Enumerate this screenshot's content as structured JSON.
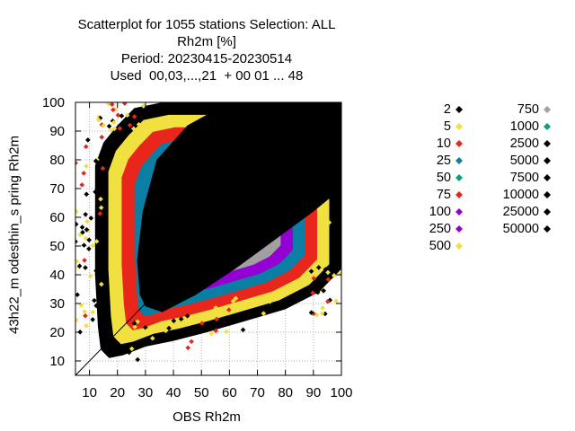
{
  "title_lines": [
    "Scatterplot for 1055 stations Selection: ALL",
    "Rh2m [%]",
    "Period: 20230415-20230514",
    "Used  00,03,...,21  + 00 01 ... 48"
  ],
  "chart_data": {
    "type": "scatter",
    "xlabel": "OBS Rh2m",
    "ylabel": "43h22_m odesthin_s pring Rh2m",
    "xlim": [
      5,
      100
    ],
    "ylim": [
      5,
      100
    ],
    "xticks": [
      "10",
      "20",
      "30",
      "40",
      "50",
      "60",
      "70",
      "80",
      "90",
      "100"
    ],
    "yticks": [
      "10",
      "20",
      "30",
      "40",
      "50",
      "60",
      "70",
      "80",
      "90",
      "100"
    ],
    "grid": true,
    "diagonal": true,
    "legend_position": "right",
    "legend": [
      {
        "label": "2",
        "color": "#000000"
      },
      {
        "label": "5",
        "color": "#f0e040"
      },
      {
        "label": "10",
        "color": "#e8261c"
      },
      {
        "label": "25",
        "color": "#0a7fa3"
      },
      {
        "label": "50",
        "color": "#08a07a"
      },
      {
        "label": "75",
        "color": "#e8261c"
      },
      {
        "label": "100",
        "color": "#9400d3"
      },
      {
        "label": "250",
        "color": "#9400d3"
      },
      {
        "label": "500",
        "color": "#f0e040"
      },
      {
        "label": "750",
        "color": "#a0a0a0"
      },
      {
        "label": "1000",
        "color": "#08a07a"
      },
      {
        "label": "2500",
        "color": "#000000"
      },
      {
        "label": "5000",
        "color": "#000000"
      },
      {
        "label": "7500",
        "color": "#000000"
      },
      {
        "label": "10000",
        "color": "#000000"
      },
      {
        "label": "25000",
        "color": "#000000"
      },
      {
        "label": "50000",
        "color": "#000000"
      }
    ],
    "density_bands": [
      {
        "level": "2",
        "color": "#000000"
      },
      {
        "level": "500",
        "color": "#f0e040"
      },
      {
        "level": "10",
        "color": "#e8261c"
      },
      {
        "level": "25",
        "color": "#0a7fa3"
      },
      {
        "level": "100",
        "color": "#9400d3"
      },
      {
        "level": "750",
        "color": "#a0a0a0"
      },
      {
        "level": "2500",
        "color": "#000000"
      }
    ]
  }
}
